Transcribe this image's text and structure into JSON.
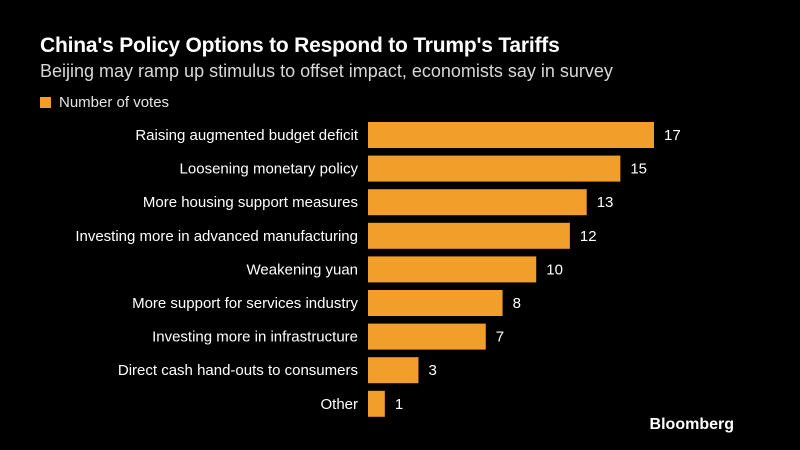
{
  "colors": {
    "bar": "#f19e2b",
    "background": "#000000",
    "text": "#ffffff"
  },
  "source": "Bloomberg",
  "chart_data": {
    "type": "bar",
    "orientation": "horizontal",
    "title": "China's Policy Options to Respond to Trump's Tariffs",
    "subtitle": "Beijing may ramp up stimulus to offset impact, economists say in survey",
    "legend": "Number of votes",
    "categories": [
      "Raising augmented budget deficit",
      "Loosening monetary policy",
      "More housing support measures",
      "Investing more in advanced manufacturing",
      "Weakening yuan",
      "More support for services industry",
      "Investing more in infrastructure",
      "Direct cash hand-outs to consumers",
      "Other"
    ],
    "values": [
      17,
      15,
      13,
      12,
      10,
      8,
      7,
      3,
      1
    ],
    "xlim": [
      0,
      17
    ],
    "xlabel": "",
    "ylabel": "",
    "grid": false
  }
}
